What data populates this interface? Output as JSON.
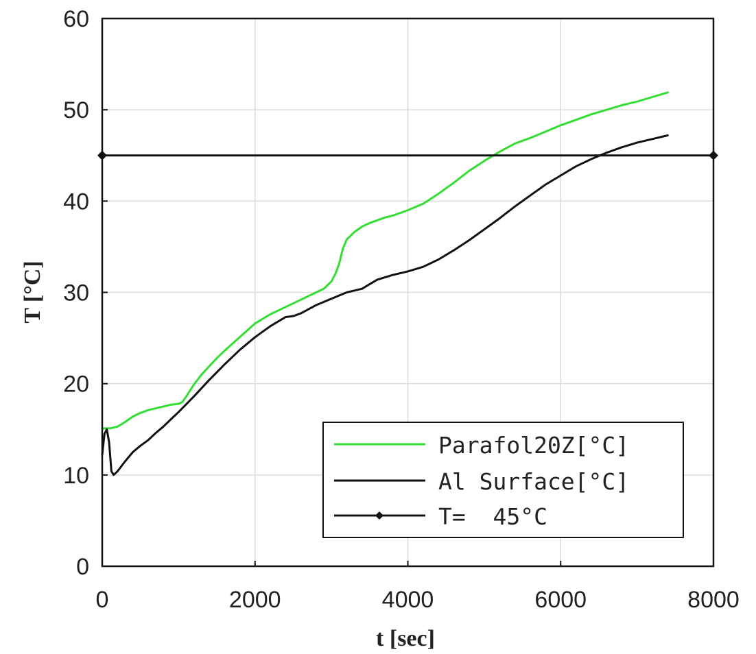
{
  "chart_data": {
    "type": "line",
    "xlabel": "t [sec]",
    "ylabel": "T [°C]",
    "xlim": [
      0,
      8000
    ],
    "ylim": [
      0,
      60
    ],
    "xticks": [
      0,
      2000,
      4000,
      6000,
      8000
    ],
    "yticks": [
      0,
      10,
      20,
      30,
      40,
      50,
      60
    ],
    "grid": true,
    "legend_position": "bottom-right",
    "series": [
      {
        "name": "Parafol20Z[°C]",
        "color": "#33dd33",
        "marker": "none",
        "x": [
          0,
          100,
          200,
          300,
          400,
          500,
          600,
          700,
          800,
          900,
          1000,
          1050,
          1100,
          1200,
          1300,
          1400,
          1500,
          1600,
          1800,
          2000,
          2200,
          2400,
          2600,
          2800,
          2900,
          3000,
          3050,
          3100,
          3150,
          3200,
          3250,
          3300,
          3400,
          3500,
          3600,
          3700,
          3800,
          4000,
          4200,
          4400,
          4600,
          4800,
          5000,
          5200,
          5400,
          5600,
          5800,
          6000,
          6200,
          6400,
          6600,
          6800,
          7000,
          7200,
          7400
        ],
        "y": [
          15.1,
          15.1,
          15.3,
          15.8,
          16.4,
          16.8,
          17.1,
          17.3,
          17.5,
          17.7,
          17.8,
          18.0,
          18.6,
          19.9,
          21.0,
          21.9,
          22.8,
          23.6,
          25.1,
          26.6,
          27.6,
          28.4,
          29.2,
          30.0,
          30.4,
          31.2,
          32.0,
          33.1,
          34.8,
          35.8,
          36.2,
          36.6,
          37.2,
          37.6,
          37.9,
          38.2,
          38.4,
          39.0,
          39.7,
          40.8,
          42.0,
          43.3,
          44.4,
          45.4,
          46.3,
          46.9,
          47.6,
          48.3,
          48.9,
          49.5,
          50.0,
          50.5,
          50.9,
          51.4,
          51.9
        ]
      },
      {
        "name": "Al Surface[°C]",
        "color": "#111111",
        "marker": "none",
        "x": [
          0,
          30,
          60,
          90,
          120,
          150,
          200,
          300,
          400,
          500,
          600,
          700,
          800,
          900,
          1000,
          1200,
          1400,
          1600,
          1800,
          2000,
          2200,
          2400,
          2500,
          2600,
          2800,
          3000,
          3200,
          3400,
          3600,
          3800,
          4000,
          4200,
          4400,
          4600,
          4800,
          5000,
          5200,
          5400,
          5600,
          5800,
          6000,
          6200,
          6400,
          6600,
          6800,
          7000,
          7200,
          7400
        ],
        "y": [
          12.2,
          14.5,
          15.0,
          13.6,
          10.4,
          10.0,
          10.4,
          11.5,
          12.5,
          13.2,
          13.8,
          14.6,
          15.3,
          16.1,
          16.9,
          18.6,
          20.4,
          22.1,
          23.7,
          25.1,
          26.3,
          27.3,
          27.4,
          27.7,
          28.6,
          29.3,
          30.0,
          30.4,
          31.4,
          31.9,
          32.3,
          32.8,
          33.6,
          34.6,
          35.7,
          36.9,
          38.1,
          39.4,
          40.6,
          41.8,
          42.8,
          43.8,
          44.6,
          45.3,
          45.9,
          46.4,
          46.8,
          47.2
        ]
      },
      {
        "name": "T=  45°C",
        "color": "#111111",
        "marker": "diamond",
        "x": [
          0,
          8000
        ],
        "y": [
          45,
          45
        ]
      }
    ]
  }
}
